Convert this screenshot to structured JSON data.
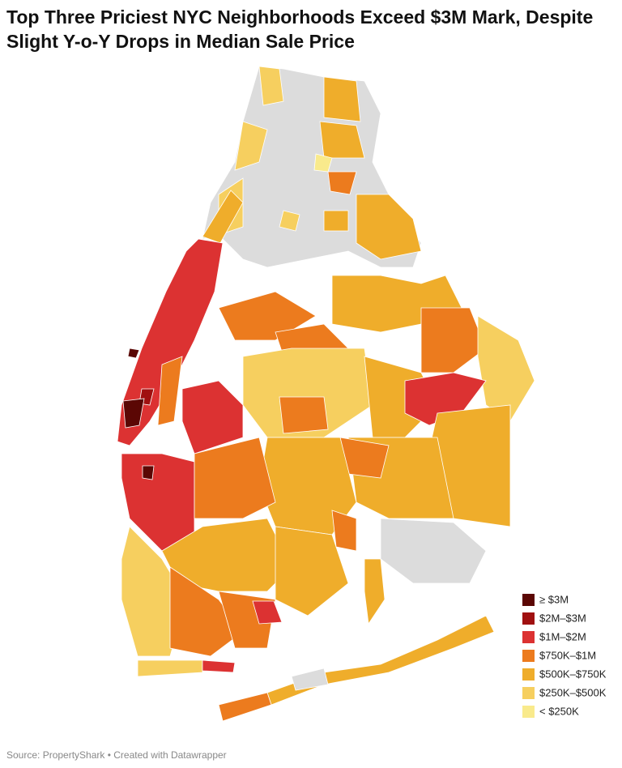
{
  "title": "Top Three Priciest NYC Neighborhoods Exceed $3M Mark, Despite Slight Y-o-Y Drops in Median Sale Price",
  "legend": {
    "items": [
      {
        "label": "≥ $3M",
        "color": "#5b0704"
      },
      {
        "label": "$2M–$3M",
        "color": "#a01010"
      },
      {
        "label": "$1M–$2M",
        "color": "#dc3232"
      },
      {
        "label": "$750K–$1M",
        "color": "#ec7b1e"
      },
      {
        "label": "$500K–$750K",
        "color": "#efad2b"
      },
      {
        "label": "$250K–$500K",
        "color": "#f6cf5f"
      },
      {
        "label": "< $250K",
        "color": "#f9ea8c"
      }
    ]
  },
  "source": "Source: PropertyShark • Created with Datawrapper"
}
